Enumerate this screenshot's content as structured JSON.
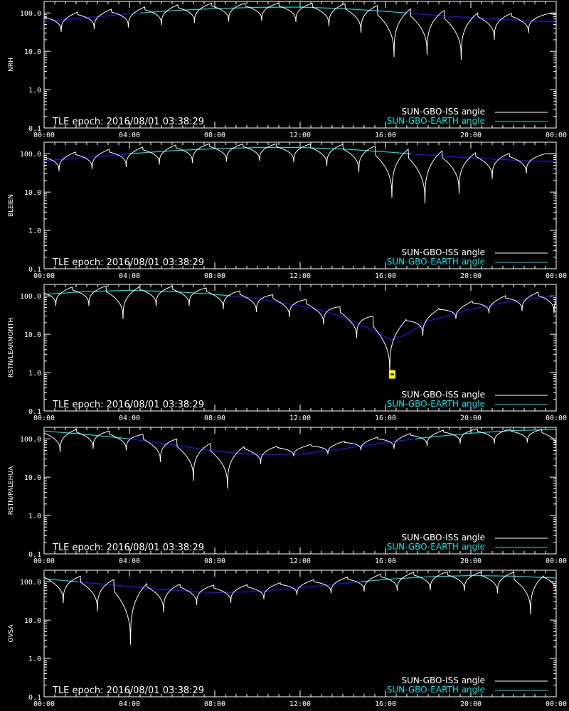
{
  "colors": {
    "background": "#000000",
    "axes": "#ffffff",
    "iss": "#ffffff",
    "earth_above": "#00e5e5",
    "earth_below": "#1a1aff",
    "marker": "#ffff00"
  },
  "epoch_label": "TLE epoch: 2016/08/01 03:38:29",
  "legend": {
    "iss": "SUN-GBO-ISS angle",
    "earth": "SUN-GBO-EARTH angle"
  },
  "chart_data": [
    {
      "type": "line",
      "ylabel": "NRH",
      "yscale": "log",
      "ylim": [
        0.1,
        200
      ],
      "yticks": [
        "0.1",
        "1.0",
        "10.0",
        "100.0"
      ],
      "xlim": [
        "00:00",
        "24:00"
      ],
      "xticks": [
        "00:00",
        "04:00",
        "08:00",
        "12:00",
        "16:00",
        "20:00",
        "00:00"
      ],
      "series": [
        {
          "name": "SUN-GBO-EARTH angle",
          "x_hours": [
            0,
            2,
            4,
            6,
            8,
            10,
            12,
            14,
            16,
            18,
            20,
            22,
            24
          ],
          "y": [
            60,
            75,
            95,
            115,
            130,
            140,
            142,
            130,
            110,
            90,
            75,
            65,
            58
          ]
        },
        {
          "name": "SUN-GBO-ISS angle",
          "dips": [
            {
              "t": 0.8,
              "min": 32
            },
            {
              "t": 2.35,
              "min": 38
            },
            {
              "t": 3.95,
              "min": 42
            },
            {
              "t": 5.5,
              "min": 48
            },
            {
              "t": 7.05,
              "min": 55
            },
            {
              "t": 8.65,
              "min": 60
            },
            {
              "t": 10.2,
              "min": 62
            },
            {
              "t": 11.8,
              "min": 58
            },
            {
              "t": 13.35,
              "min": 45
            },
            {
              "t": 14.85,
              "min": 30
            },
            {
              "t": 16.4,
              "min": 7
            },
            {
              "t": 17.95,
              "min": 8
            },
            {
              "t": 19.55,
              "min": 6
            },
            {
              "t": 21.1,
              "min": 20
            },
            {
              "t": 22.7,
              "min": 30
            }
          ]
        }
      ]
    },
    {
      "type": "line",
      "ylabel": "BLEIEN",
      "yscale": "log",
      "ylim": [
        0.1,
        200
      ],
      "yticks": [
        "0.1",
        "1.0",
        "10.0",
        "100.0"
      ],
      "xlim": [
        "00:00",
        "24:00"
      ],
      "xticks": [
        "00:00",
        "04:00",
        "08:00",
        "12:00",
        "16:00",
        "20:00",
        "00:00"
      ],
      "series": [
        {
          "name": "SUN-GBO-EARTH angle",
          "x_hours": [
            0,
            2,
            4,
            6,
            8,
            10,
            12,
            14,
            16,
            18,
            20,
            22,
            24
          ],
          "y": [
            65,
            80,
            100,
            120,
            135,
            145,
            145,
            133,
            112,
            92,
            78,
            68,
            62
          ]
        },
        {
          "name": "SUN-GBO-ISS angle",
          "dips": [
            {
              "t": 0.7,
              "min": 35
            },
            {
              "t": 2.25,
              "min": 40
            },
            {
              "t": 3.85,
              "min": 45
            },
            {
              "t": 5.4,
              "min": 52
            },
            {
              "t": 6.95,
              "min": 58
            },
            {
              "t": 8.55,
              "min": 62
            },
            {
              "t": 10.1,
              "min": 65
            },
            {
              "t": 11.7,
              "min": 60
            },
            {
              "t": 13.25,
              "min": 48
            },
            {
              "t": 14.75,
              "min": 33
            },
            {
              "t": 16.3,
              "min": 7
            },
            {
              "t": 17.85,
              "min": 5
            },
            {
              "t": 19.45,
              "min": 9
            },
            {
              "t": 21.0,
              "min": 22
            },
            {
              "t": 22.6,
              "min": 30
            }
          ]
        }
      ]
    },
    {
      "type": "line",
      "ylabel": "RSTN/LEARMONTH",
      "yscale": "log",
      "ylim": [
        0.1,
        200
      ],
      "yticks": [
        "0.1",
        "1.0",
        "10.0",
        "100.0"
      ],
      "xlim": [
        "00:00",
        "24:00"
      ],
      "xticks": [
        "00:00",
        "04:00",
        "08:00",
        "12:00",
        "16:00",
        "20:00",
        "00:00"
      ],
      "marker": {
        "t": 16.3,
        "value": 0.9
      },
      "series": [
        {
          "name": "SUN-GBO-EARTH angle",
          "x_hours": [
            0,
            2,
            4,
            6,
            8,
            10,
            12,
            13,
            14,
            15,
            16.3,
            17,
            18,
            20,
            22,
            24
          ],
          "y": [
            110,
            130,
            140,
            130,
            110,
            85,
            55,
            42,
            28,
            16,
            7,
            10,
            22,
            45,
            75,
            100
          ]
        },
        {
          "name": "SUN-GBO-ISS angle",
          "dips": [
            {
              "t": 0.55,
              "min": 55
            },
            {
              "t": 2.1,
              "min": 55
            },
            {
              "t": 3.7,
              "min": 25
            },
            {
              "t": 5.25,
              "min": 55
            },
            {
              "t": 6.8,
              "min": 55
            },
            {
              "t": 8.4,
              "min": 45
            },
            {
              "t": 9.95,
              "min": 38
            },
            {
              "t": 11.5,
              "min": 28
            },
            {
              "t": 13.1,
              "min": 18
            },
            {
              "t": 14.65,
              "min": 8
            },
            {
              "t": 16.2,
              "min": 1
            },
            {
              "t": 17.75,
              "min": 9
            },
            {
              "t": 19.3,
              "min": 25
            },
            {
              "t": 20.85,
              "min": 35
            },
            {
              "t": 22.4,
              "min": 40
            },
            {
              "t": 23.9,
              "min": 35
            }
          ]
        }
      ]
    },
    {
      "type": "line",
      "ylabel": "RSTN/PALEHUA",
      "yscale": "log",
      "ylim": [
        0.1,
        200
      ],
      "yticks": [
        "0.1",
        "1.0",
        "10.0",
        "100.0"
      ],
      "xlim": [
        "00:00",
        "24:00"
      ],
      "xticks": [
        "00:00",
        "04:00",
        "08:00",
        "12:00",
        "16:00",
        "20:00",
        "00:00"
      ],
      "series": [
        {
          "name": "SUN-GBO-EARTH angle",
          "x_hours": [
            0,
            2,
            4,
            6,
            8,
            10,
            12,
            14,
            16,
            18,
            20,
            22,
            24
          ],
          "y": [
            160,
            130,
            100,
            70,
            48,
            38,
            40,
            55,
            80,
            110,
            140,
            165,
            175
          ]
        },
        {
          "name": "SUN-GBO-ISS angle",
          "dips": [
            {
              "t": 0.75,
              "min": 45
            },
            {
              "t": 2.3,
              "min": 55
            },
            {
              "t": 3.85,
              "min": 50
            },
            {
              "t": 5.45,
              "min": 25
            },
            {
              "t": 7.0,
              "min": 8
            },
            {
              "t": 8.6,
              "min": 5
            },
            {
              "t": 10.15,
              "min": 22
            },
            {
              "t": 11.7,
              "min": 35
            },
            {
              "t": 13.3,
              "min": 40
            },
            {
              "t": 14.85,
              "min": 50
            },
            {
              "t": 16.4,
              "min": 55
            },
            {
              "t": 17.95,
              "min": 65
            },
            {
              "t": 19.5,
              "min": 75
            },
            {
              "t": 21.1,
              "min": 75
            },
            {
              "t": 22.65,
              "min": 80
            },
            {
              "t": 24.0,
              "min": 60
            }
          ]
        }
      ]
    },
    {
      "type": "line",
      "ylabel": "OVSA",
      "yscale": "log",
      "ylim": [
        0.1,
        200
      ],
      "yticks": [
        "0.1",
        "1.0",
        "10.0",
        "100.0"
      ],
      "xlim": [
        "00:00",
        "24:00"
      ],
      "xticks": [
        "00:00",
        "04:00",
        "08:00",
        "12:00",
        "16:00",
        "20:00",
        "00:00"
      ],
      "series": [
        {
          "name": "SUN-GBO-EARTH angle",
          "x_hours": [
            0,
            2,
            4,
            6,
            8,
            10,
            12,
            14,
            16,
            18,
            20,
            22,
            24
          ],
          "y": [
            120,
            95,
            75,
            60,
            52,
            55,
            70,
            90,
            115,
            135,
            145,
            140,
            125
          ]
        },
        {
          "name": "SUN-GBO-ISS angle",
          "dips": [
            {
              "t": 0.9,
              "min": 28
            },
            {
              "t": 2.5,
              "min": 17
            },
            {
              "t": 4.05,
              "min": 2.3
            },
            {
              "t": 5.6,
              "min": 16
            },
            {
              "t": 7.15,
              "min": 25
            },
            {
              "t": 8.75,
              "min": 28
            },
            {
              "t": 10.3,
              "min": 35
            },
            {
              "t": 11.85,
              "min": 45
            },
            {
              "t": 13.45,
              "min": 50
            },
            {
              "t": 15.0,
              "min": 55
            },
            {
              "t": 16.55,
              "min": 58
            },
            {
              "t": 18.1,
              "min": 60
            },
            {
              "t": 19.7,
              "min": 58
            },
            {
              "t": 21.25,
              "min": 50
            },
            {
              "t": 22.8,
              "min": 14
            },
            {
              "t": 24.0,
              "min": 50
            }
          ]
        }
      ]
    }
  ]
}
